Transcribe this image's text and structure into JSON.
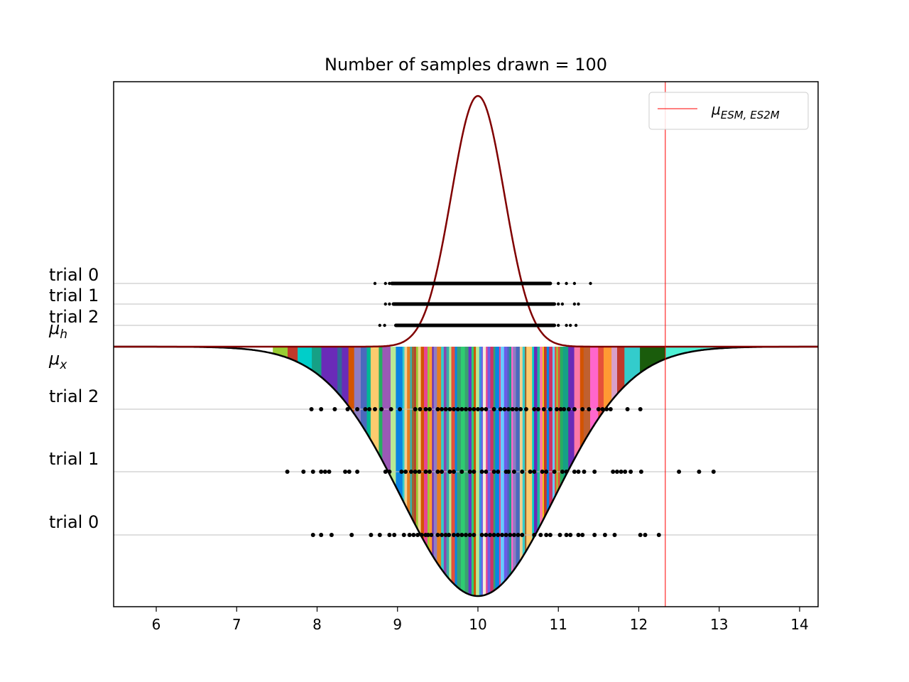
{
  "chart_data": {
    "type": "scatter",
    "title": "Number of samples drawn = 100",
    "xlabel": "",
    "ylabel": "",
    "xlim": [
      5.47,
      14.23
    ],
    "xticks": [
      6,
      7,
      8,
      9,
      10,
      11,
      12,
      13,
      14
    ],
    "grid": "horizontal reference lines at each trial row",
    "legend": {
      "placement": "upper right",
      "entries": [
        {
          "label": "μ_{ESM, ES2M}",
          "color": "#ff0000"
        }
      ]
    },
    "reference_line": {
      "name": "μ_{ESM, ES2M}",
      "x": 12.33,
      "color": "#ff0000"
    },
    "curves": {
      "upper_density": {
        "mean": 10.0,
        "sd": 0.33,
        "color": "#800000"
      },
      "lower_density": {
        "mean": 10.0,
        "sd": 0.95,
        "color": "#000000",
        "fill": "colored vertical strips"
      }
    },
    "row_labels": {
      "upper": [
        "trial 0",
        "trial 1",
        "trial 2"
      ],
      "mu_h": "μ_h",
      "mu_x": "μ_x",
      "lower": [
        "trial 2",
        "trial 1",
        "trial 0"
      ]
    },
    "upper_trials": [
      {
        "name": "trial 0",
        "x_min": 8.72,
        "x_max": 11.4,
        "dense_from": 8.93,
        "dense_to": 10.9,
        "extra": [
          8.72,
          8.85,
          8.9,
          11.0,
          11.1,
          11.2,
          11.4
        ]
      },
      {
        "name": "trial 1",
        "x_min": 8.85,
        "x_max": 11.25,
        "dense_from": 8.95,
        "dense_to": 10.95,
        "extra": [
          8.85,
          8.9,
          11.0,
          11.05,
          11.2,
          11.25
        ]
      },
      {
        "name": "trial 2",
        "x_min": 8.78,
        "x_max": 11.22,
        "dense_from": 8.98,
        "dense_to": 10.95,
        "extra": [
          8.78,
          8.84,
          11.0,
          11.1,
          11.15,
          11.22
        ]
      }
    ],
    "lower_trials": [
      {
        "name": "trial 0",
        "x": [
          7.95,
          8.05,
          8.18,
          8.43,
          8.67,
          8.78,
          8.9,
          8.96,
          9.08,
          9.15,
          9.2,
          9.25,
          9.3,
          9.35,
          9.38,
          9.42,
          9.5,
          9.55,
          9.6,
          9.64,
          9.7,
          9.75,
          9.8,
          9.85,
          9.9,
          9.95,
          10.05,
          10.1,
          10.15,
          10.2,
          10.25,
          10.3,
          10.35,
          10.4,
          10.45,
          10.5,
          10.55,
          10.7,
          10.78,
          10.85,
          10.9,
          11.02,
          11.1,
          11.15,
          11.25,
          11.3,
          11.45,
          11.58,
          11.7,
          12.02,
          12.08,
          12.25
        ]
      },
      {
        "name": "trial 1",
        "x": [
          7.63,
          7.83,
          7.95,
          8.05,
          8.1,
          8.15,
          8.35,
          8.4,
          8.5,
          8.85,
          8.9,
          9.05,
          9.1,
          9.17,
          9.22,
          9.27,
          9.35,
          9.4,
          9.5,
          9.55,
          9.65,
          9.7,
          9.8,
          9.9,
          9.95,
          10.05,
          10.1,
          10.2,
          10.25,
          10.35,
          10.38,
          10.45,
          10.55,
          10.65,
          10.7,
          10.8,
          10.85,
          10.95,
          11.05,
          11.1,
          11.2,
          11.25,
          11.32,
          11.45,
          11.68,
          11.73,
          11.78,
          11.83,
          11.9,
          12.03,
          12.5,
          12.75,
          12.93
        ]
      },
      {
        "name": "trial 2",
        "x": [
          7.93,
          8.05,
          8.22,
          8.38,
          8.5,
          8.6,
          8.65,
          8.72,
          8.8,
          8.92,
          9.03,
          9.22,
          9.28,
          9.35,
          9.4,
          9.5,
          9.55,
          9.6,
          9.65,
          9.7,
          9.75,
          9.8,
          9.85,
          9.9,
          9.95,
          10.0,
          10.05,
          10.1,
          10.2,
          10.28,
          10.33,
          10.38,
          10.43,
          10.48,
          10.53,
          10.6,
          10.7,
          10.75,
          10.82,
          10.9,
          10.98,
          11.03,
          11.07,
          11.13,
          11.2,
          11.3,
          11.38,
          11.5,
          11.55,
          11.6,
          11.65,
          11.86,
          12.02
        ]
      }
    ]
  }
}
